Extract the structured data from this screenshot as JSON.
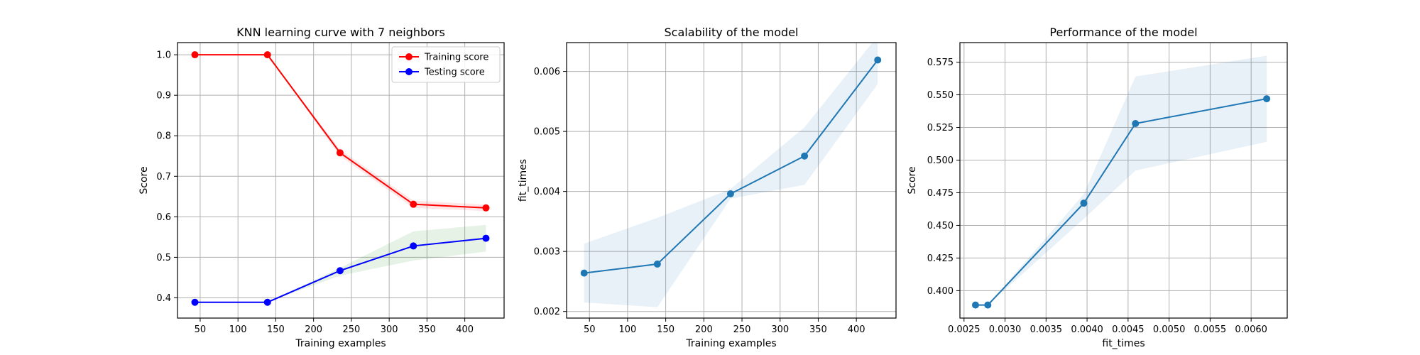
{
  "colors": {
    "training": "#ff0000",
    "testing": "#0000ff",
    "default_line": "#1f77b4",
    "training_band": "#ff0000",
    "testing_band": "#008000",
    "default_band": "#1f77b4",
    "grid": "#b0b0b0"
  },
  "chart_data": [
    {
      "type": "line",
      "title": "KNN learning curve with 7 neighbors",
      "xlabel": "Training examples",
      "ylabel": "Score",
      "xlim": [
        20,
        452
      ],
      "ylim": [
        0.35,
        1.03
      ],
      "xticks": [
        50,
        100,
        150,
        200,
        250,
        300,
        350,
        400
      ],
      "xtick_labels": [
        "50",
        "100",
        "150",
        "200",
        "250",
        "300",
        "350",
        "400"
      ],
      "yticks": [
        0.4,
        0.5,
        0.6,
        0.7,
        0.8,
        0.9,
        1.0
      ],
      "ytick_labels": [
        "0.4",
        "0.5",
        "0.6",
        "0.7",
        "0.8",
        "0.9",
        "1.0"
      ],
      "grid": true,
      "legend_position": "top-right",
      "series": [
        {
          "name": "Training score",
          "color_key": "training",
          "band_color_key": "training_band",
          "band_opacity": 0.1,
          "x": [
            43,
            139,
            235,
            332,
            428
          ],
          "y": [
            1.0,
            1.0,
            0.758,
            0.631,
            0.622
          ],
          "lower": [
            1.0,
            1.0,
            0.75,
            0.622,
            0.614
          ],
          "upper": [
            1.0,
            1.0,
            0.766,
            0.64,
            0.63
          ]
        },
        {
          "name": "Testing score",
          "color_key": "testing",
          "band_color_key": "testing_band",
          "band_opacity": 0.1,
          "x": [
            43,
            139,
            235,
            332,
            428
          ],
          "y": [
            0.389,
            0.389,
            0.467,
            0.528,
            0.547
          ],
          "lower": [
            0.389,
            0.389,
            0.455,
            0.492,
            0.514
          ],
          "upper": [
            0.389,
            0.389,
            0.474,
            0.564,
            0.58
          ]
        }
      ]
    },
    {
      "type": "line",
      "title": "Scalability of the model",
      "xlabel": "Training examples",
      "ylabel": "fit_times",
      "xlim": [
        20,
        452
      ],
      "ylim": [
        0.00189,
        0.00648
      ],
      "xticks": [
        50,
        100,
        150,
        200,
        250,
        300,
        350,
        400
      ],
      "xtick_labels": [
        "50",
        "100",
        "150",
        "200",
        "250",
        "300",
        "350",
        "400"
      ],
      "yticks": [
        0.002,
        0.003,
        0.004,
        0.005,
        0.006
      ],
      "ytick_labels": [
        "0.002",
        "0.003",
        "0.004",
        "0.005",
        "0.006"
      ],
      "grid": true,
      "series": [
        {
          "color_key": "default_line",
          "band_color_key": "default_band",
          "band_opacity": 0.1,
          "x": [
            43,
            139,
            235,
            332,
            428
          ],
          "y": [
            0.00264,
            0.00279,
            0.00396,
            0.00459,
            0.00619
          ],
          "lower": [
            0.00215,
            0.00207,
            0.00388,
            0.00411,
            0.00579
          ],
          "upper": [
            0.00313,
            0.00356,
            0.00404,
            0.00507,
            0.00659
          ]
        }
      ]
    },
    {
      "type": "line",
      "title": "Performance of the model",
      "xlabel": "fit_times",
      "ylabel": "Score",
      "xlim": [
        0.00245,
        0.00644
      ],
      "ylim": [
        0.379,
        0.59
      ],
      "xticks": [
        0.0025,
        0.003,
        0.0035,
        0.004,
        0.0045,
        0.005,
        0.0055,
        0.006
      ],
      "xtick_labels": [
        "0.0025",
        "0.0030",
        "0.0035",
        "0.0040",
        "0.0045",
        "0.0050",
        "0.0055",
        "0.0060"
      ],
      "yticks": [
        0.4,
        0.425,
        0.45,
        0.475,
        0.5,
        0.525,
        0.55,
        0.575
      ],
      "ytick_labels": [
        "0.400",
        "0.425",
        "0.450",
        "0.475",
        "0.500",
        "0.525",
        "0.550",
        "0.575"
      ],
      "grid": true,
      "series": [
        {
          "color_key": "default_line",
          "band_color_key": "default_band",
          "band_opacity": 0.1,
          "x": [
            0.00264,
            0.00279,
            0.00396,
            0.00459,
            0.00619
          ],
          "y": [
            0.389,
            0.389,
            0.467,
            0.528,
            0.547
          ],
          "lower": [
            0.389,
            0.389,
            0.455,
            0.492,
            0.514
          ],
          "upper": [
            0.389,
            0.389,
            0.474,
            0.564,
            0.58
          ]
        }
      ]
    }
  ]
}
